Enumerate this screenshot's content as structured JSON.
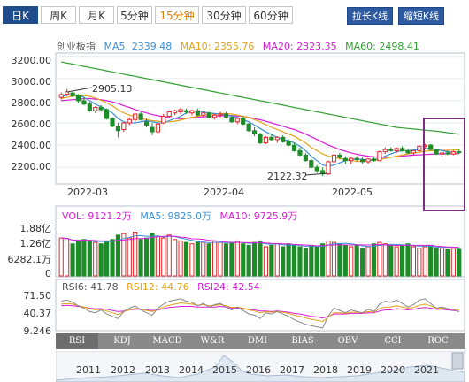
{
  "tabs": [
    {
      "label": "日K",
      "active": true
    },
    {
      "label": "周K",
      "active": false
    },
    {
      "label": "月K",
      "active": false
    },
    {
      "label": "5分钟",
      "active": false
    },
    {
      "label": "15分钟",
      "active": false,
      "highlight": true
    },
    {
      "label": "30分钟",
      "active": false
    },
    {
      "label": "60分钟",
      "active": false
    }
  ],
  "zoom": {
    "stretch": "拉长K线",
    "shrink": "缩短K线"
  },
  "ma_legend": {
    "name": "创业板指",
    "ma5": "MA5: 2339.48",
    "ma10": "MA10: 2355.76",
    "ma20": "MA20: 2323.35",
    "ma60": "MA60: 2498.41"
  },
  "colors": {
    "up": "#e0262b",
    "down": "#1f8c2a",
    "ma5": "#3d8fd6",
    "ma10": "#e3a21a",
    "ma20": "#d81ed8",
    "ma60": "#33a033",
    "highlight_box": "#7b2d7f",
    "tab_active": "#1f4d8c"
  },
  "price_axis": {
    "labels": [
      "3200.00",
      "3000.00",
      "2800.00",
      "2600.00",
      "2400.00",
      "2200.00"
    ]
  },
  "date_axis": {
    "labels": [
      "2022-03",
      "2022-04",
      "2022-05"
    ]
  },
  "annotations": {
    "high": "2905.13",
    "low": "2122.32"
  },
  "vol_legend": {
    "vol": "VOL: 9121.2万",
    "ma5": "MA5: 9825.0万",
    "ma10": "MA10: 9725.9万"
  },
  "vol_axis": {
    "labels": [
      "1.88亿",
      "1.26亿",
      "6282.1万",
      "0"
    ]
  },
  "rsi_legend": {
    "rsi6": "RSI6: 41.78",
    "rsi12": "RSI12: 44.76",
    "rsi24": "RSI24: 42.54"
  },
  "rsi_axis": {
    "labels": [
      "71.50",
      "40.37",
      "9.246"
    ]
  },
  "indicator_tabs": [
    "RSI",
    "KDJ",
    "MACD",
    "W&R",
    "DMI",
    "BIAS",
    "OBV",
    "CCI",
    "ROC"
  ],
  "timeline_years": [
    "2011",
    "2012",
    "2013",
    "2014",
    "2015",
    "2016",
    "2017",
    "2018",
    "2019",
    "2020",
    "2021"
  ],
  "chart_data": {
    "type": "candlestick",
    "title": "创业板指",
    "period": "daily",
    "ylim": [
      2050,
      3230
    ],
    "candles": [
      {
        "o": 2830,
        "h": 2875,
        "l": 2810,
        "c": 2855
      },
      {
        "o": 2860,
        "h": 2905,
        "l": 2840,
        "c": 2880
      },
      {
        "o": 2870,
        "h": 2880,
        "l": 2830,
        "c": 2845
      },
      {
        "o": 2845,
        "h": 2860,
        "l": 2780,
        "c": 2800
      },
      {
        "o": 2800,
        "h": 2830,
        "l": 2760,
        "c": 2770
      },
      {
        "o": 2770,
        "h": 2790,
        "l": 2700,
        "c": 2710
      },
      {
        "o": 2710,
        "h": 2750,
        "l": 2690,
        "c": 2740
      },
      {
        "o": 2740,
        "h": 2760,
        "l": 2700,
        "c": 2720
      },
      {
        "o": 2720,
        "h": 2730,
        "l": 2630,
        "c": 2640
      },
      {
        "o": 2640,
        "h": 2650,
        "l": 2560,
        "c": 2570
      },
      {
        "o": 2570,
        "h": 2600,
        "l": 2470,
        "c": 2530
      },
      {
        "o": 2540,
        "h": 2610,
        "l": 2520,
        "c": 2600
      },
      {
        "o": 2600,
        "h": 2650,
        "l": 2580,
        "c": 2630
      },
      {
        "o": 2630,
        "h": 2690,
        "l": 2610,
        "c": 2680
      },
      {
        "o": 2680,
        "h": 2700,
        "l": 2620,
        "c": 2630
      },
      {
        "o": 2610,
        "h": 2640,
        "l": 2560,
        "c": 2580
      },
      {
        "o": 2560,
        "h": 2600,
        "l": 2490,
        "c": 2520
      },
      {
        "o": 2520,
        "h": 2600,
        "l": 2500,
        "c": 2590
      },
      {
        "o": 2600,
        "h": 2680,
        "l": 2590,
        "c": 2660
      },
      {
        "o": 2660,
        "h": 2710,
        "l": 2640,
        "c": 2700
      },
      {
        "o": 2690,
        "h": 2720,
        "l": 2670,
        "c": 2710
      },
      {
        "o": 2700,
        "h": 2740,
        "l": 2680,
        "c": 2720
      },
      {
        "o": 2710,
        "h": 2730,
        "l": 2680,
        "c": 2700
      },
      {
        "o": 2690,
        "h": 2720,
        "l": 2670,
        "c": 2710
      },
      {
        "o": 2710,
        "h": 2730,
        "l": 2660,
        "c": 2670
      },
      {
        "o": 2670,
        "h": 2700,
        "l": 2650,
        "c": 2690
      },
      {
        "o": 2690,
        "h": 2700,
        "l": 2640,
        "c": 2650
      },
      {
        "o": 2650,
        "h": 2680,
        "l": 2630,
        "c": 2670
      },
      {
        "o": 2670,
        "h": 2700,
        "l": 2650,
        "c": 2680
      },
      {
        "o": 2680,
        "h": 2700,
        "l": 2640,
        "c": 2650
      },
      {
        "o": 2650,
        "h": 2670,
        "l": 2600,
        "c": 2610
      },
      {
        "o": 2610,
        "h": 2650,
        "l": 2590,
        "c": 2640
      },
      {
        "o": 2640,
        "h": 2660,
        "l": 2580,
        "c": 2590
      },
      {
        "o": 2590,
        "h": 2600,
        "l": 2520,
        "c": 2530
      },
      {
        "o": 2530,
        "h": 2560,
        "l": 2480,
        "c": 2500
      },
      {
        "o": 2500,
        "h": 2510,
        "l": 2410,
        "c": 2420
      },
      {
        "o": 2420,
        "h": 2480,
        "l": 2410,
        "c": 2470
      },
      {
        "o": 2470,
        "h": 2500,
        "l": 2440,
        "c": 2450
      },
      {
        "o": 2450,
        "h": 2480,
        "l": 2420,
        "c": 2470
      },
      {
        "o": 2470,
        "h": 2490,
        "l": 2420,
        "c": 2430
      },
      {
        "o": 2430,
        "h": 2450,
        "l": 2390,
        "c": 2400
      },
      {
        "o": 2400,
        "h": 2420,
        "l": 2340,
        "c": 2350
      },
      {
        "o": 2350,
        "h": 2380,
        "l": 2300,
        "c": 2310
      },
      {
        "o": 2310,
        "h": 2330,
        "l": 2250,
        "c": 2260
      },
      {
        "o": 2260,
        "h": 2280,
        "l": 2190,
        "c": 2200
      },
      {
        "o": 2200,
        "h": 2220,
        "l": 2150,
        "c": 2170
      },
      {
        "o": 2170,
        "h": 2200,
        "l": 2122,
        "c": 2140
      },
      {
        "o": 2140,
        "h": 2260,
        "l": 2130,
        "c": 2250
      },
      {
        "o": 2250,
        "h": 2320,
        "l": 2240,
        "c": 2310
      },
      {
        "o": 2310,
        "h": 2330,
        "l": 2270,
        "c": 2290
      },
      {
        "o": 2280,
        "h": 2300,
        "l": 2230,
        "c": 2260
      },
      {
        "o": 2260,
        "h": 2290,
        "l": 2230,
        "c": 2280
      },
      {
        "o": 2280,
        "h": 2300,
        "l": 2250,
        "c": 2270
      },
      {
        "o": 2270,
        "h": 2290,
        "l": 2230,
        "c": 2250
      },
      {
        "o": 2250,
        "h": 2280,
        "l": 2230,
        "c": 2275
      },
      {
        "o": 2275,
        "h": 2300,
        "l": 2250,
        "c": 2260
      },
      {
        "o": 2260,
        "h": 2350,
        "l": 2255,
        "c": 2340
      },
      {
        "o": 2340,
        "h": 2380,
        "l": 2320,
        "c": 2360
      },
      {
        "o": 2360,
        "h": 2380,
        "l": 2340,
        "c": 2350
      },
      {
        "o": 2350,
        "h": 2380,
        "l": 2330,
        "c": 2370
      },
      {
        "o": 2370,
        "h": 2390,
        "l": 2340,
        "c": 2350
      },
      {
        "o": 2350,
        "h": 2370,
        "l": 2320,
        "c": 2330
      },
      {
        "o": 2330,
        "h": 2360,
        "l": 2310,
        "c": 2350
      },
      {
        "o": 2350,
        "h": 2400,
        "l": 2340,
        "c": 2390
      },
      {
        "o": 2390,
        "h": 2410,
        "l": 2370,
        "c": 2400
      },
      {
        "o": 2400,
        "h": 2410,
        "l": 2350,
        "c": 2360
      },
      {
        "o": 2360,
        "h": 2370,
        "l": 2310,
        "c": 2320
      },
      {
        "o": 2320,
        "h": 2350,
        "l": 2300,
        "c": 2330
      },
      {
        "o": 2330,
        "h": 2350,
        "l": 2310,
        "c": 2320
      },
      {
        "o": 2320,
        "h": 2350,
        "l": 2310,
        "c": 2340
      },
      {
        "o": 2340,
        "h": 2360,
        "l": 2320,
        "c": 2339
      }
    ],
    "ma5": [
      2840,
      2850,
      2855,
      2850,
      2830,
      2800,
      2770,
      2745,
      2720,
      2690,
      2640,
      2610,
      2600,
      2600,
      2610,
      2620,
      2610,
      2600,
      2600,
      2620,
      2640,
      2660,
      2690,
      2705,
      2705,
      2700,
      2690,
      2685,
      2680,
      2675,
      2660,
      2650,
      2630,
      2610,
      2580,
      2550,
      2520,
      2495,
      2470,
      2450,
      2440,
      2420,
      2390,
      2350,
      2300,
      2260,
      2220,
      2210,
      2220,
      2240,
      2260,
      2270,
      2275,
      2270,
      2265,
      2265,
      2280,
      2300,
      2320,
      2340,
      2350,
      2350,
      2355,
      2360,
      2370,
      2370,
      2360,
      2350,
      2340,
      2335,
      2339
    ],
    "ma10": [
      2820,
      2830,
      2840,
      2845,
      2845,
      2840,
      2825,
      2805,
      2780,
      2755,
      2720,
      2690,
      2670,
      2655,
      2640,
      2630,
      2620,
      2615,
      2610,
      2610,
      2615,
      2625,
      2640,
      2650,
      2660,
      2670,
      2675,
      2680,
      2685,
      2685,
      2680,
      2670,
      2660,
      2650,
      2630,
      2610,
      2585,
      2560,
      2540,
      2520,
      2500,
      2480,
      2450,
      2420,
      2380,
      2350,
      2320,
      2300,
      2290,
      2280,
      2270,
      2260,
      2255,
      2255,
      2260,
      2265,
      2270,
      2280,
      2290,
      2300,
      2310,
      2320,
      2330,
      2335,
      2345,
      2350,
      2352,
      2353,
      2354,
      2355,
      2356
    ],
    "ma20": [
      2800,
      2805,
      2810,
      2815,
      2818,
      2820,
      2815,
      2810,
      2800,
      2790,
      2775,
      2755,
      2740,
      2720,
      2705,
      2690,
      2675,
      2665,
      2655,
      2648,
      2640,
      2638,
      2640,
      2645,
      2650,
      2655,
      2660,
      2662,
      2664,
      2666,
      2665,
      2662,
      2658,
      2650,
      2640,
      2628,
      2615,
      2600,
      2585,
      2570,
      2555,
      2540,
      2520,
      2500,
      2475,
      2450,
      2425,
      2400,
      2380,
      2360,
      2345,
      2330,
      2318,
      2308,
      2300,
      2295,
      2290,
      2290,
      2292,
      2295,
      2300,
      2305,
      2310,
      2312,
      2315,
      2318,
      2320,
      2321,
      2322,
      2323,
      2323
    ],
    "ma60": [
      3150,
      3140,
      3130,
      3120,
      3110,
      3100,
      3090,
      3080,
      3070,
      3060,
      3050,
      3040,
      3030,
      3020,
      3010,
      3000,
      2990,
      2980,
      2970,
      2960,
      2950,
      2940,
      2930,
      2920,
      2910,
      2900,
      2890,
      2880,
      2870,
      2860,
      2850,
      2840,
      2830,
      2820,
      2810,
      2800,
      2790,
      2780,
      2770,
      2760,
      2750,
      2740,
      2730,
      2720,
      2710,
      2700,
      2690,
      2680,
      2670,
      2660,
      2650,
      2640,
      2630,
      2620,
      2610,
      2600,
      2590,
      2580,
      2570,
      2560,
      2555,
      2550,
      2545,
      2540,
      2535,
      2530,
      2525,
      2520,
      2512,
      2505,
      2498
    ],
    "volume_ylim": [
      0,
      1.88
    ],
    "volume": [
      1.3,
      1.28,
      1.1,
      1.2,
      1.25,
      1.22,
      1.15,
      1.1,
      1.2,
      1.25,
      1.4,
      1.45,
      1.3,
      1.5,
      1.25,
      1.3,
      1.45,
      1.35,
      1.3,
      1.4,
      1.25,
      1.2,
      1.15,
      1.1,
      1.2,
      1.15,
      1.1,
      1.2,
      1.15,
      1.1,
      1.15,
      1.2,
      1.1,
      1.05,
      1.15,
      1.2,
      1.0,
      1.05,
      1.1,
      1.0,
      1.1,
      1.05,
      1.0,
      0.95,
      1.05,
      1.0,
      1.1,
      1.2,
      1.15,
      1.1,
      1.05,
      1.0,
      1.05,
      0.95,
      1.0,
      1.1,
      1.15,
      1.1,
      1.05,
      1.0,
      1.05,
      1.1,
      1.0,
      0.95,
      1.0,
      1.05,
      0.95,
      0.95,
      0.9,
      0.95,
      0.91
    ],
    "rsi_ylim": [
      9.246,
      71.5
    ],
    "rsi6": [
      60,
      62,
      58,
      52,
      48,
      42,
      40,
      45,
      38,
      34,
      30,
      42,
      48,
      52,
      45,
      40,
      36,
      48,
      55,
      60,
      62,
      64,
      60,
      58,
      52,
      56,
      50,
      54,
      56,
      50,
      45,
      50,
      44,
      38,
      36,
      30,
      40,
      38,
      42,
      38,
      34,
      28,
      24,
      20,
      18,
      16,
      14,
      35,
      48,
      44,
      40,
      45,
      42,
      40,
      46,
      42,
      55,
      60,
      58,
      62,
      56,
      50,
      54,
      62,
      64,
      56,
      48,
      50,
      47,
      45,
      41.78
    ],
    "rsi12": [
      55,
      56,
      55,
      52,
      50,
      47,
      45,
      46,
      43,
      40,
      37,
      42,
      45,
      48,
      46,
      44,
      42,
      46,
      50,
      53,
      55,
      57,
      56,
      55,
      53,
      54,
      52,
      53,
      54,
      52,
      49,
      50,
      48,
      45,
      43,
      40,
      42,
      41,
      42,
      41,
      39,
      36,
      34,
      31,
      29,
      27,
      25,
      33,
      40,
      40,
      39,
      41,
      41,
      40,
      42,
      41,
      47,
      50,
      50,
      52,
      50,
      48,
      49,
      53,
      55,
      52,
      48,
      48,
      47,
      46,
      44.76
    ],
    "rsi24": [
      52,
      53,
      52,
      51,
      50,
      48,
      47,
      47,
      46,
      44,
      42,
      43,
      45,
      46,
      46,
      45,
      44,
      45,
      47,
      49,
      50,
      51,
      51,
      51,
      50,
      50,
      50,
      50,
      51,
      50,
      48,
      48,
      47,
      46,
      45,
      43,
      43,
      42,
      43,
      42,
      41,
      39,
      38,
      36,
      34,
      33,
      31,
      34,
      38,
      38,
      38,
      39,
      39,
      39,
      40,
      40,
      43,
      45,
      45,
      47,
      46,
      45,
      46,
      48,
      49,
      48,
      46,
      46,
      45,
      44,
      42.54
    ]
  }
}
